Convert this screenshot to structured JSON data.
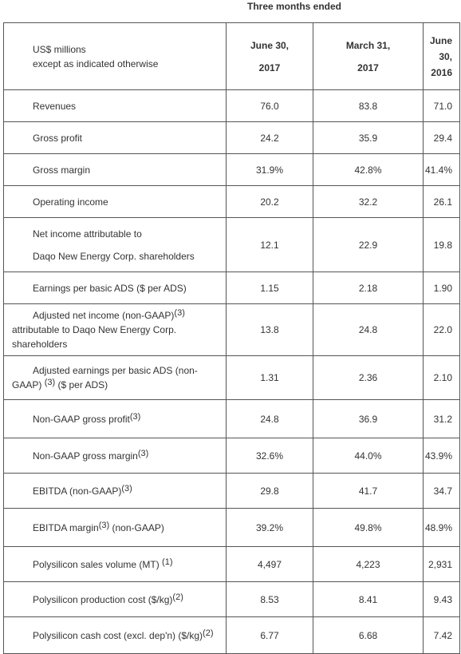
{
  "caption": "Three months ended",
  "table": {
    "header": [
      [
        "US$ millions",
        "except as indicated otherwise"
      ],
      [
        "June 30,",
        "2017"
      ],
      [
        "March 31,",
        "2017"
      ],
      [
        "June 30,",
        "2016"
      ]
    ],
    "rows": [
      {
        "label": [
          {
            "text": "Revenues"
          }
        ],
        "values": [
          "76.0",
          "83.8",
          "71.0"
        ]
      },
      {
        "label": [
          {
            "text": "Gross profit"
          }
        ],
        "values": [
          "24.2",
          "35.9",
          "29.4"
        ]
      },
      {
        "label": [
          {
            "text": "Gross margin"
          }
        ],
        "values": [
          "31.9%",
          "42.8%",
          "41.4%"
        ]
      },
      {
        "label": [
          {
            "text": "Operating income"
          }
        ],
        "values": [
          "20.2",
          "32.2",
          "26.1"
        ]
      },
      {
        "label": [
          {
            "text": "Net income attributable to"
          },
          {
            "text": "Daqo New Energy Corp. shareholders"
          }
        ],
        "stacked": true,
        "values": [
          "12.1",
          "22.9",
          "19.8"
        ]
      },
      {
        "label": [
          {
            "text": "Earnings per basic ADS ($ per ADS)"
          }
        ],
        "values": [
          "1.15",
          "2.18",
          "1.90"
        ]
      },
      {
        "label": [
          {
            "text": "Adjusted net income (non-GAAP)"
          },
          {
            "sup": "(3)"
          },
          {
            "text": " attributable to Daqo New Energy Corp. shareholders"
          }
        ],
        "values": [
          "13.8",
          "24.8",
          "22.0"
        ]
      },
      {
        "label": [
          {
            "text": "Adjusted earnings per basic ADS (non-GAAP) "
          },
          {
            "sup": "(3)"
          },
          {
            "text": " ($ per ADS)"
          }
        ],
        "values": [
          "1.31",
          "2.36",
          "2.10"
        ]
      },
      {
        "label": [
          {
            "text": "Non-GAAP gross profit"
          },
          {
            "sup": "(3)"
          }
        ],
        "values": [
          "24.8",
          "36.9",
          "31.2"
        ]
      },
      {
        "label": [
          {
            "text": "Non-GAAP gross margin"
          },
          {
            "sup": "(3)"
          }
        ],
        "values": [
          "32.6%",
          "44.0%",
          "43.9%"
        ]
      },
      {
        "label": [
          {
            "text": "EBITDA (non-GAAP)"
          },
          {
            "sup": "(3)"
          }
        ],
        "values": [
          "29.8",
          "41.7",
          "34.7"
        ]
      },
      {
        "label": [
          {
            "text": "EBITDA margin"
          },
          {
            "sup": "(3)"
          },
          {
            "text": " (non-GAAP)"
          }
        ],
        "values": [
          "39.2%",
          "49.8%",
          "48.9%"
        ]
      },
      {
        "label": [
          {
            "text": "Polysilicon sales volume (MT) "
          },
          {
            "sup": "(1)"
          }
        ],
        "values": [
          "4,497",
          "4,223",
          "2,931"
        ]
      },
      {
        "label": [
          {
            "text": "Polysilicon production cost ($/kg)"
          },
          {
            "sup": "(2)"
          }
        ],
        "values": [
          "8.53",
          "8.41",
          "9.43"
        ]
      },
      {
        "label": [
          {
            "text": "Polysilicon cash cost (excl. dep'n) ($/kg)"
          },
          {
            "sup": "(2)"
          }
        ],
        "values": [
          "6.77",
          "6.68",
          "7.42"
        ]
      }
    ]
  }
}
